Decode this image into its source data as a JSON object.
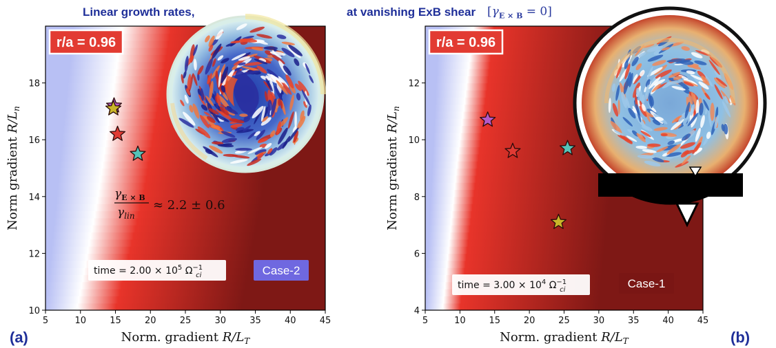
{
  "title": {
    "left": "Linear growth rates,",
    "right": "at vanishing ExB shear",
    "bracket": "[γ_{E×B} = 0]"
  },
  "colors": {
    "accent_title": "#1f2f99",
    "badge_red": "#e23b32",
    "case2_badge": "#6f68e0",
    "case1_badge": "#7a1614",
    "map_low": "#b8c0f4",
    "map_mid": "#ffffff",
    "map_high": "#e8342a",
    "map_top": "#7e1815"
  },
  "chart_data": [
    {
      "panel": "(a)",
      "type": "heatmap",
      "xlabel": "Norm. gradient  R/L_T",
      "ylabel": "Norm gradient  R/L_n",
      "xlim": [
        5,
        45
      ],
      "ylim": [
        10,
        20
      ],
      "xticks": [
        5,
        10,
        15,
        20,
        25,
        30,
        35,
        40,
        45
      ],
      "yticks": [
        10,
        12,
        14,
        16,
        18
      ],
      "badge": "r/a = 0.96",
      "time_label": "time = 2.00 × 10^5 Ω_ci^-1",
      "case_label": "Case-2",
      "annotation": "γ_{E×B} / γ_lin ≈ 2.2 ± 0.6",
      "contours": [
        {
          "level": "blue",
          "points": [
            [
              5,
              10
            ],
            [
              9,
              20
            ]
          ]
        },
        {
          "level": "white",
          "points": [
            [
              9.5,
              10
            ],
            [
              12.5,
              14
            ],
            [
              16,
              20
            ]
          ]
        },
        {
          "level": "red",
          "points": [
            [
              15,
              10
            ],
            [
              19,
              14
            ],
            [
              23,
              20
            ]
          ]
        },
        {
          "level": "dark",
          "points": [
            [
              33,
              10
            ],
            [
              36,
              14
            ],
            [
              39,
              20
            ]
          ]
        }
      ],
      "stars": [
        {
          "x": 14.8,
          "y": 17.2,
          "color": "#b35ac9"
        },
        {
          "x": 14.7,
          "y": 17.1,
          "color": "#c9b52a"
        },
        {
          "x": 15.3,
          "y": 16.2,
          "color": "#e03a33"
        },
        {
          "x": 18.2,
          "y": 15.5,
          "color": "#55c2b8"
        }
      ]
    },
    {
      "panel": "(b)",
      "type": "heatmap",
      "xlabel": "Norm. gradient  R/L_T",
      "ylabel": "Norm gradient  R/L_n",
      "xlim": [
        5,
        45
      ],
      "ylim": [
        4,
        14
      ],
      "xticks": [
        5,
        10,
        15,
        20,
        25,
        30,
        35,
        40,
        45
      ],
      "yticks": [
        4,
        6,
        8,
        10,
        12
      ],
      "badge": "r/a = 0.96",
      "time_label": "time = 3.00 × 10^4 Ω_ci^-1",
      "case_label": "Case-1",
      "contours": [
        {
          "level": "blue",
          "points": [
            [
              5,
              4
            ],
            [
              7,
              14
            ]
          ]
        },
        {
          "level": "white",
          "points": [
            [
              7.5,
              4
            ],
            [
              9.5,
              9
            ],
            [
              12,
              14
            ]
          ]
        },
        {
          "level": "red",
          "points": [
            [
              10,
              4
            ],
            [
              12.5,
              9
            ],
            [
              15,
              14
            ]
          ]
        },
        {
          "level": "dark",
          "points": [
            [
              30,
              4
            ],
            [
              32,
              9
            ],
            [
              34,
              14
            ]
          ]
        }
      ],
      "stars": [
        {
          "x": 14,
          "y": 10.7,
          "color": "#b35ac9"
        },
        {
          "x": 17.6,
          "y": 9.6,
          "color": "#e03a33"
        },
        {
          "x": 25.5,
          "y": 9.7,
          "color": "#55c2b8"
        },
        {
          "x": 24.2,
          "y": 7.1,
          "color": "#c9b52a"
        }
      ]
    }
  ],
  "panel_labels": [
    "(a)",
    "(b)"
  ]
}
